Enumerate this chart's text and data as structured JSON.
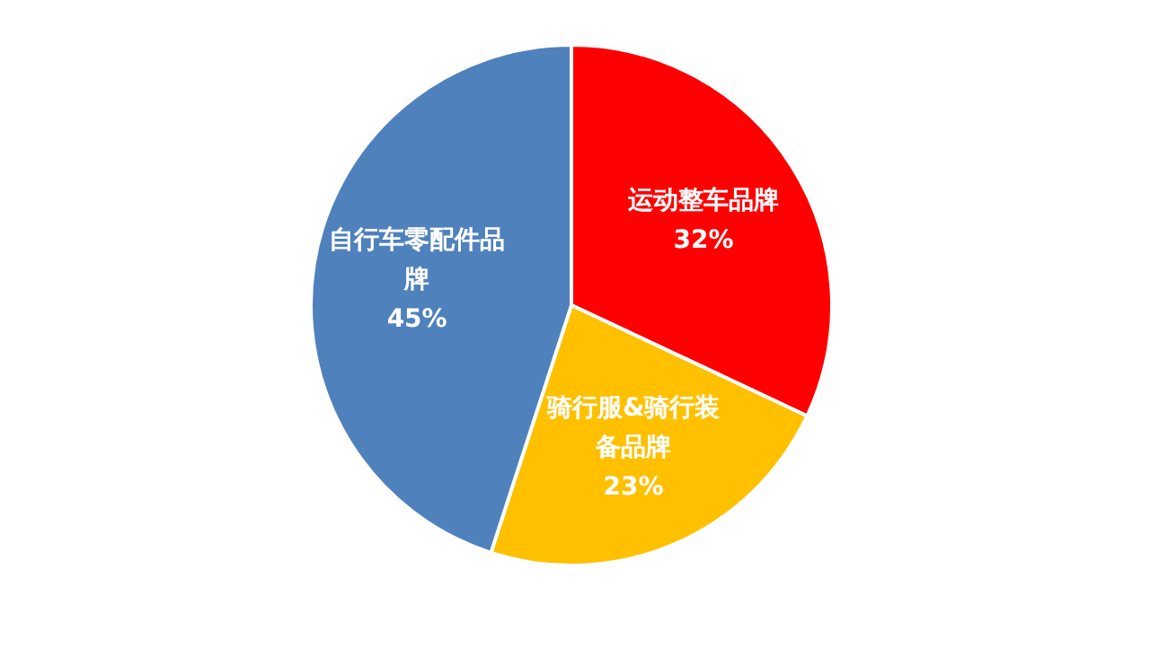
{
  "chart_data": {
    "type": "pie",
    "categories": [
      "运动整车品牌",
      "骑行服&骑行装备品牌",
      "自行车零配件品牌"
    ],
    "values": [
      32,
      23,
      45
    ],
    "value_labels": [
      "32%",
      "23%",
      "45%"
    ],
    "colors": [
      "#ff0000",
      "#ffc000",
      "#4f81bd"
    ],
    "legend": false
  }
}
